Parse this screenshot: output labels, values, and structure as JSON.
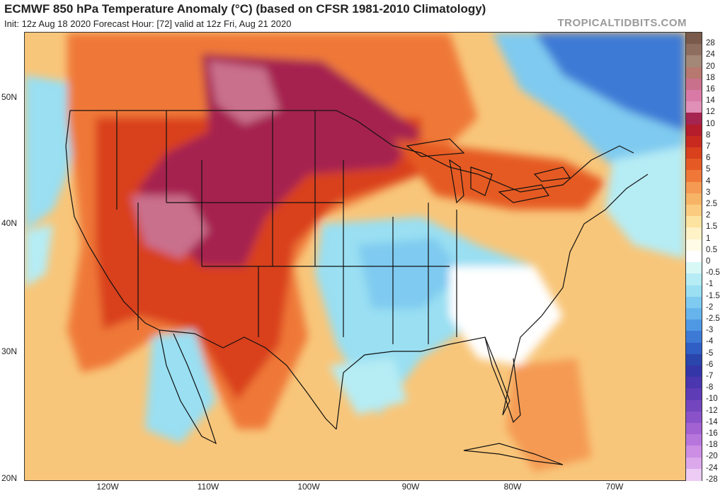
{
  "title": "ECMWF 850 hPa Temperature Anomaly (°C) (based on CFSR 1981-2010 Climatology)",
  "subtitle": "Init: 12z Aug 18 2020   Forecast Hour: [72]   valid at 12z Fri, Aug 21 2020",
  "brand": "TROPICALTIDBITS.COM",
  "lat_labels": [
    "50N",
    "40N",
    "30N",
    "20N"
  ],
  "lon_labels": [
    "120W",
    "110W",
    "100W",
    "90W",
    "80W",
    "70W"
  ],
  "colorbar": {
    "labels": [
      "28",
      "24",
      "20",
      "18",
      "16",
      "14",
      "12",
      "10",
      "8",
      "7",
      "6",
      "5",
      "4",
      "3",
      "2.5",
      "2",
      "1.5",
      "1",
      "0.5",
      "0",
      "-0.5",
      "-1",
      "-1.5",
      "-2",
      "-2.5",
      "-3",
      "-4",
      "-5",
      "-6",
      "-7",
      "-8",
      "-10",
      "-12",
      "-14",
      "-16",
      "-18",
      "-20",
      "-24",
      "-28"
    ],
    "colors": [
      "#7a5a4a",
      "#8e6e5e",
      "#a38777",
      "#b7786f",
      "#c9708d",
      "#d97aa6",
      "#e08fb7",
      "#a52450",
      "#b51c2c",
      "#c82a20",
      "#d9401c",
      "#e55a24",
      "#ef7838",
      "#f59a52",
      "#f8b466",
      "#fbcc80",
      "#fde3a0",
      "#fef2c6",
      "#fffbe6",
      "#ffffff",
      "#d8f8f6",
      "#b6ecf4",
      "#9adff2",
      "#7fcaf0",
      "#66b4ec",
      "#4f98e4",
      "#3d7ad6",
      "#2f5ec4",
      "#2a45ac",
      "#3436a8",
      "#4a36ae",
      "#5e3cb6",
      "#7346be",
      "#8a52c8",
      "#a262d2",
      "#b776dc",
      "#cb8ee4",
      "#dca8ec",
      "#eccbf4"
    ]
  },
  "legend_colors": {
    "very_warm": "#a52450",
    "warm": "#d9401c",
    "mild_warm": "#f59a52",
    "slight_warm": "#fde3a0",
    "neutral": "#ffffff",
    "cool": "#9adff2",
    "cold": "#3d7ad6",
    "extreme_warm": "#c9708d"
  }
}
